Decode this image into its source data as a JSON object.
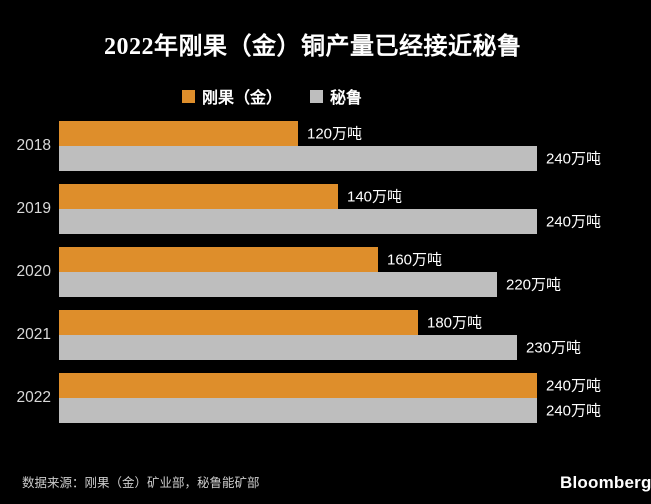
{
  "title": "2022年刚果（金）铜产量已经接近秘鲁",
  "legend": {
    "items": [
      {
        "label": "刚果（金）",
        "color": "#DE8E2B"
      },
      {
        "label": "秘鲁",
        "color": "#BEBEBE"
      }
    ]
  },
  "chart_data": {
    "type": "bar",
    "orientation": "horizontal",
    "title": "2022年刚果（金）铜产量已经接近秘鲁",
    "categories": [
      "2018",
      "2019",
      "2020",
      "2021",
      "2022"
    ],
    "series": [
      {
        "key": "congo",
        "name": "刚果（金）",
        "color": "#DE8E2B",
        "values": [
          120,
          140,
          160,
          180,
          240
        ],
        "labels": [
          "120万吨",
          "140万吨",
          "160万吨",
          "180万吨",
          "240万吨"
        ]
      },
      {
        "key": "peru",
        "name": "秘鲁",
        "color": "#BEBEBE",
        "values": [
          240,
          240,
          220,
          230,
          240
        ],
        "labels": [
          "240万吨",
          "240万吨",
          "220万吨",
          "230万吨",
          "240万吨"
        ]
      }
    ],
    "unit": "万吨",
    "xlim": [
      0,
      240
    ],
    "legend_position": "top",
    "grid": false,
    "value_labels": "outside-end"
  },
  "source": "数据来源：刚果（金）矿业部，秘鲁能矿部",
  "branding": "Bloomberg",
  "colors": {
    "background": "#000000",
    "congo_bar": "#DE8E2B",
    "peru_bar": "#BEBEBE",
    "title_text": "#FFFFFF",
    "value_text": "#FFFFFF",
    "year_text": "#D9D9D9",
    "source_text": "#CCCCCC"
  }
}
